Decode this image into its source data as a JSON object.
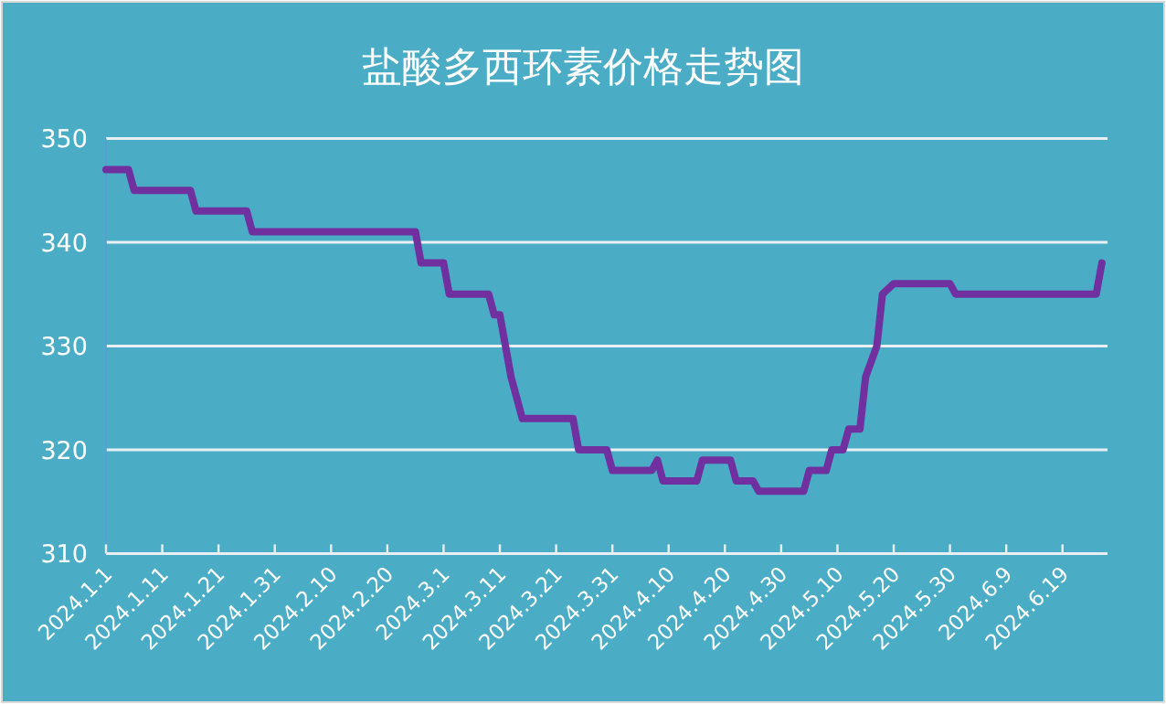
{
  "chart_data": {
    "type": "line",
    "title": "盐酸多西环素价格走势图",
    "x": [
      "2024-01-01",
      "2024-01-05",
      "2024-01-06",
      "2024-01-16",
      "2024-01-17",
      "2024-01-26",
      "2024-01-27",
      "2024-02-25",
      "2024-02-26",
      "2024-03-01",
      "2024-03-02",
      "2024-03-09",
      "2024-03-10",
      "2024-03-11",
      "2024-03-13",
      "2024-03-15",
      "2024-03-24",
      "2024-03-25",
      "2024-03-30",
      "2024-03-31",
      "2024-04-07",
      "2024-04-08",
      "2024-04-09",
      "2024-04-15",
      "2024-04-16",
      "2024-04-21",
      "2024-04-22",
      "2024-04-25",
      "2024-04-26",
      "2024-05-04",
      "2024-05-05",
      "2024-05-08",
      "2024-05-09",
      "2024-05-11",
      "2024-05-12",
      "2024-05-14",
      "2024-05-15",
      "2024-05-17",
      "2024-05-18",
      "2024-05-20",
      "2024-05-30",
      "2024-05-31",
      "2024-06-25",
      "2024-06-26"
    ],
    "series": [
      {
        "color": "#7030a0",
        "values": [
          347,
          347,
          345,
          345,
          343,
          343,
          341,
          341,
          338,
          338,
          335,
          335,
          333,
          333,
          327,
          323,
          323,
          320,
          320,
          318,
          318,
          319,
          317,
          317,
          319,
          319,
          317,
          317,
          316,
          316,
          318,
          318,
          320,
          320,
          322,
          322,
          327,
          330,
          335,
          336,
          336,
          335,
          335,
          338
        ]
      }
    ],
    "xlim": [
      "2024-01-01",
      "2024-06-27"
    ],
    "xticks": [
      {
        "value": "2024-01-01",
        "label": "2024.1.1"
      },
      {
        "value": "2024-01-11",
        "label": "2024.1.11"
      },
      {
        "value": "2024-01-21",
        "label": "2024.1.21"
      },
      {
        "value": "2024-01-31",
        "label": "2024.1.31"
      },
      {
        "value": "2024-02-10",
        "label": "2024.2.10"
      },
      {
        "value": "2024-02-20",
        "label": "2024.2.20"
      },
      {
        "value": "2024-03-01",
        "label": "2024.3.1"
      },
      {
        "value": "2024-03-11",
        "label": "2024.3.11"
      },
      {
        "value": "2024-03-21",
        "label": "2024.3.21"
      },
      {
        "value": "2024-03-31",
        "label": "2024.3.31"
      },
      {
        "value": "2024-04-10",
        "label": "2024.4.10"
      },
      {
        "value": "2024-04-20",
        "label": "2024.4.20"
      },
      {
        "value": "2024-04-30",
        "label": "2024.4.30"
      },
      {
        "value": "2024-05-10",
        "label": "2024.5.10"
      },
      {
        "value": "2024-05-20",
        "label": "2024.5.20"
      },
      {
        "value": "2024-05-30",
        "label": "2024.5.30"
      },
      {
        "value": "2024-06-09",
        "label": "2024.6.9"
      },
      {
        "value": "2024-06-19",
        "label": "2024.6.19"
      }
    ],
    "ylim": [
      310,
      350
    ],
    "yticks": [
      310,
      320,
      330,
      340,
      350
    ],
    "grid": "y",
    "marker": "none",
    "line_style": "solid"
  }
}
